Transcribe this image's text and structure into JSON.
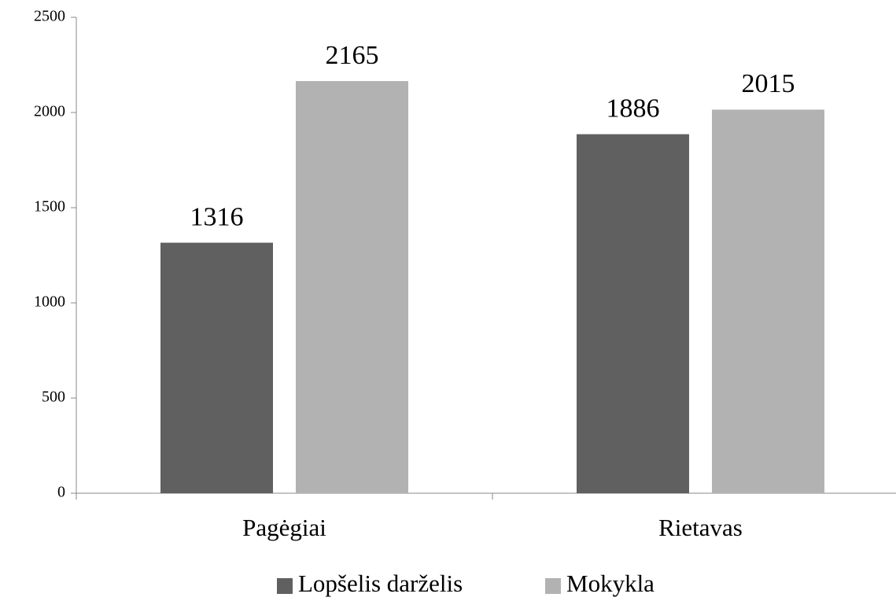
{
  "chart_data": {
    "type": "bar",
    "categories": [
      "Pagėgiai",
      "Rietavas"
    ],
    "series": [
      {
        "name": "Lopšelis darželis",
        "color": "#606060",
        "values": [
          1316,
          1886
        ]
      },
      {
        "name": "Mokykla",
        "color": "#b2b2b2",
        "values": [
          2165,
          2015
        ]
      }
    ],
    "ylim": [
      0,
      2500
    ],
    "yticks": [
      0,
      500,
      1000,
      1500,
      2000,
      2500
    ],
    "legend": "bottom",
    "data_labels": true
  }
}
